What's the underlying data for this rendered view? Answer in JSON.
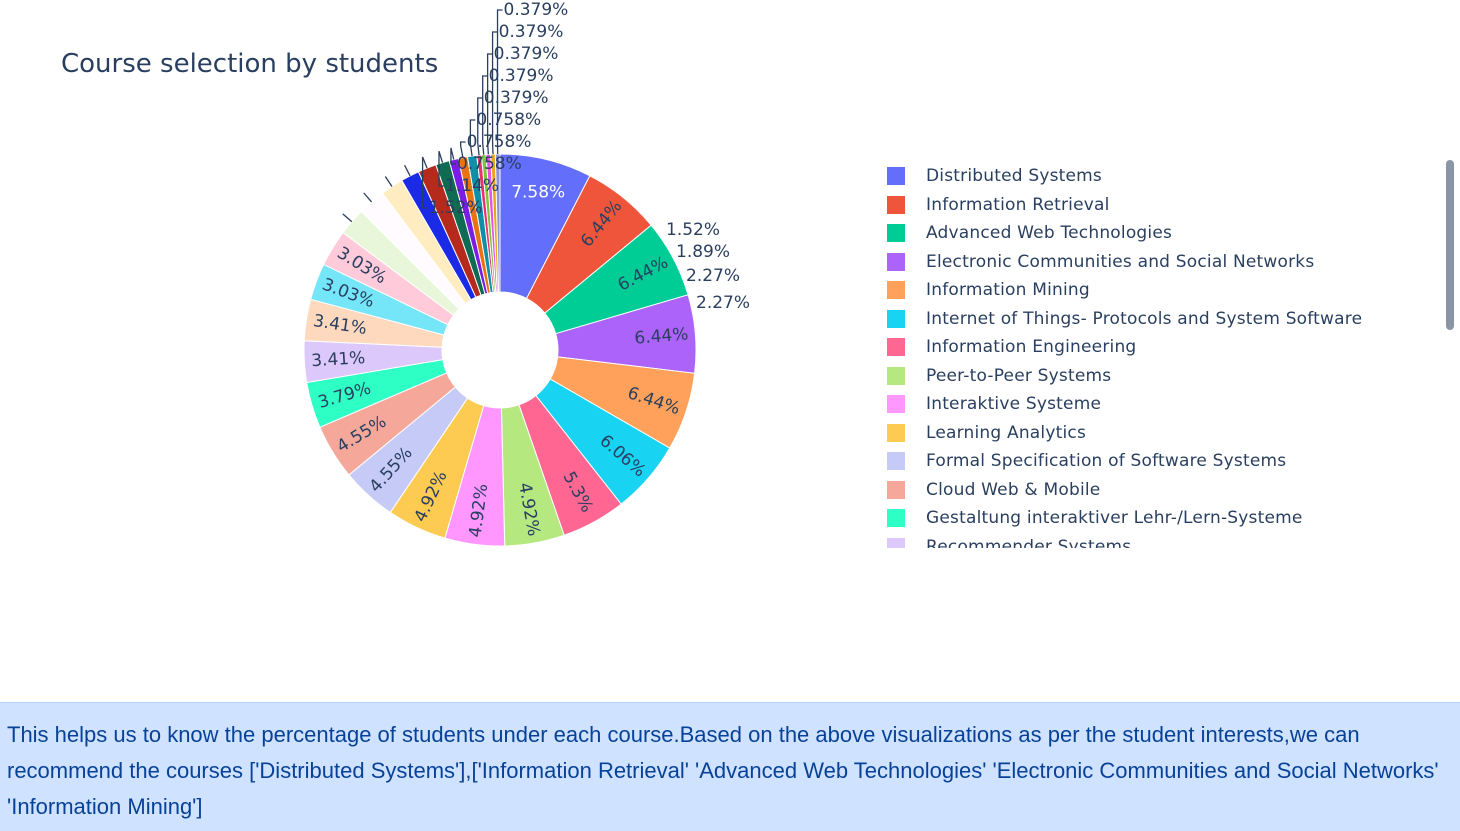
{
  "chart_data": {
    "type": "pie",
    "title": "Course selection by students",
    "hole": true,
    "legend_position": "right",
    "slices": [
      {
        "label": "Distributed Systems",
        "value": 7.58,
        "text": "7.58%",
        "color": "#636efa"
      },
      {
        "label": "Information Retrieval",
        "value": 6.44,
        "text": "6.44%",
        "color": "#EF553B"
      },
      {
        "label": "Advanced Web Technologies",
        "value": 6.44,
        "text": "6.44%",
        "color": "#00cc96"
      },
      {
        "label": "Electronic Communities and Social Networks",
        "value": 6.44,
        "text": "6.44%",
        "color": "#ab63fa"
      },
      {
        "label": "Information Mining",
        "value": 6.44,
        "text": "6.44%",
        "color": "#FFA15A"
      },
      {
        "label": "Internet of Things- Protocols and System Software",
        "value": 6.06,
        "text": "6.06%",
        "color": "#19d3f3"
      },
      {
        "label": "Information Engineering",
        "value": 5.3,
        "text": "5.3%",
        "color": "#FF6692"
      },
      {
        "label": "Peer-to-Peer Systems",
        "value": 4.92,
        "text": "4.92%",
        "color": "#B6E880"
      },
      {
        "label": "Interaktive Systeme",
        "value": 4.92,
        "text": "4.92%",
        "color": "#FF97FF"
      },
      {
        "label": "Learning Analytics",
        "value": 4.92,
        "text": "4.92%",
        "color": "#FECB52"
      },
      {
        "label": "Formal Specification of Software Systems",
        "value": 4.55,
        "text": "4.55%",
        "color": "#c6caf7"
      },
      {
        "label": "Cloud Web & Mobile",
        "value": 4.55,
        "text": "4.55%",
        "color": "#f5a89a"
      },
      {
        "label": "Gestaltung interaktiver Lehr-/Lern-Systeme",
        "value": 3.79,
        "text": "3.79%",
        "color": "#2effc4"
      },
      {
        "label": "Recommender Systems",
        "value": 3.41,
        "text": "3.41%",
        "color": "#dcc8fa"
      },
      {
        "label": "",
        "value": 3.41,
        "text": "3.41%",
        "color": "#ffd9bd"
      },
      {
        "label": "",
        "value": 3.03,
        "text": "3.03%",
        "color": "#75e5f8"
      },
      {
        "label": "",
        "value": 3.03,
        "text": "3.03%",
        "color": "#ffcad9"
      },
      {
        "label": "",
        "value": 2.27,
        "text": "2.27%",
        "color": "#e8f6d9"
      },
      {
        "label": "",
        "value": 2.27,
        "text": "2.27%",
        "color": "#fffbff"
      },
      {
        "label": "",
        "value": 1.89,
        "text": "1.89%",
        "color": "#ffecc0"
      },
      {
        "label": "",
        "value": 1.52,
        "text": "1.52%",
        "color": "#1a2ae6"
      },
      {
        "label": "",
        "value": 1.52,
        "text": "1.52%",
        "color": "#b52a1d"
      },
      {
        "label": "",
        "value": 1.14,
        "text": "1.14%",
        "color": "#0f6b52"
      },
      {
        "label": "",
        "value": 0.758,
        "text": "0.758%",
        "color": "#7a1de6"
      },
      {
        "label": "",
        "value": 0.758,
        "text": "0.758%",
        "color": "#e8730f"
      },
      {
        "label": "",
        "value": 0.758,
        "text": "0.758%",
        "color": "#0f8fa8"
      },
      {
        "label": "",
        "value": 0.379,
        "text": "0.379%",
        "color": "#e6336b"
      },
      {
        "label": "",
        "value": 0.379,
        "text": "0.379%",
        "color": "#7fc43a"
      },
      {
        "label": "",
        "value": 0.379,
        "text": "0.379%",
        "color": "#e652e6"
      },
      {
        "label": "",
        "value": 0.379,
        "text": "0.379%",
        "color": "#e6a81a"
      },
      {
        "label": "",
        "value": 0.379,
        "text": "0.379%",
        "color": "#8d93d6"
      }
    ]
  },
  "note": {
    "text": "This helps us to know the percentage of students under each course.Based on the above visualizations as per the student interests,we can recommend the courses ['Distributed Systems'],['Information Retrieval' 'Advanced Web Technologies' 'Electronic Communities and Social Networks' 'Information Mining']"
  }
}
